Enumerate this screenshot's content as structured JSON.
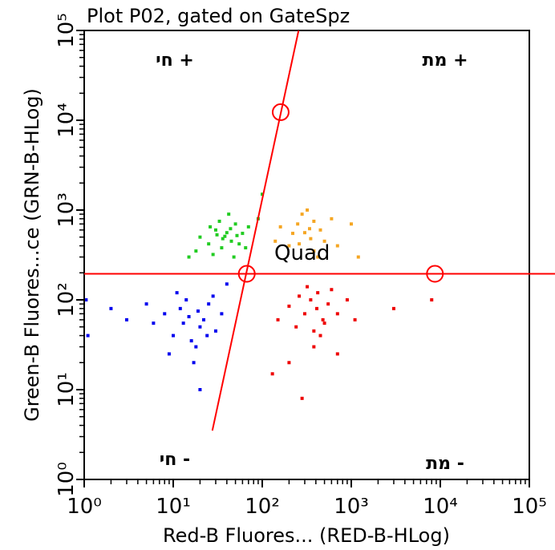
{
  "chart_data": {
    "type": "scatter",
    "title": "Plot P02, gated on GateSpz",
    "x_label": "Red-B Fluores... (RED-B-HLog)",
    "y_label": "Green-B Fluores...ce (GRN-B-HLog)",
    "log_x": true,
    "log_y": true,
    "xlim": [
      1,
      100000
    ],
    "ylim": [
      1,
      100000
    ],
    "xticks": [
      {
        "value": 1,
        "label": "10⁰"
      },
      {
        "value": 10,
        "label": "10¹"
      },
      {
        "value": 100,
        "label": "10²"
      },
      {
        "value": 1000,
        "label": "10³"
      },
      {
        "value": 10000,
        "label": "10⁴"
      },
      {
        "value": 100000,
        "label": "10⁵"
      }
    ],
    "yticks": [
      {
        "value": 1,
        "label": "10⁰"
      },
      {
        "value": 10,
        "label": "10¹"
      },
      {
        "value": 100,
        "label": "10²"
      },
      {
        "value": 1000,
        "label": "10³"
      },
      {
        "value": 10000,
        "label": "10⁴"
      },
      {
        "value": 100000,
        "label": "10⁵"
      }
    ],
    "quadrant_labels": [
      "חי +",
      "מת +",
      "חי -",
      "מת -"
    ],
    "gate": {
      "label": "Quad",
      "color": "#ff0000",
      "horizontal_y": 195,
      "slant_x": [
        27.5,
        256
      ],
      "slant_y": [
        3.5,
        100000
      ],
      "handles_x": [
        161,
        67,
        8700
      ],
      "handles_y": [
        12300,
        195,
        195
      ]
    },
    "series": [
      {
        "color": "#22cc22",
        "x": [
          38,
          30,
          45,
          25,
          50,
          35,
          60,
          20,
          42,
          28,
          55,
          33,
          70,
          18,
          48,
          40,
          36,
          44,
          31,
          52,
          15,
          90,
          100,
          26,
          65
        ],
        "y": [
          510,
          600,
          450,
          420,
          700,
          380,
          550,
          500,
          900,
          320,
          420,
          750,
          650,
          350,
          300,
          560,
          480,
          620,
          530,
          520,
          300,
          800,
          1500,
          650,
          380
        ]
      },
      {
        "color": "#f5a623",
        "x": [
          300,
          250,
          350,
          200,
          450,
          280,
          380,
          220,
          500,
          320,
          160,
          600,
          420,
          260,
          340,
          1000,
          140,
          700,
          1200,
          380
        ],
        "y": [
          560,
          700,
          480,
          400,
          600,
          900,
          350,
          550,
          450,
          1000,
          650,
          800,
          300,
          420,
          620,
          700,
          450,
          400,
          300,
          750
        ]
      },
      {
        "color": "#0000ee",
        "x": [
          15,
          12,
          20,
          10,
          25,
          18,
          8,
          14,
          22,
          30,
          6,
          16,
          11,
          28,
          19,
          13,
          24,
          5,
          35,
          9,
          17,
          40,
          3,
          20,
          1.05,
          1.1,
          2
        ],
        "y": [
          65,
          80,
          50,
          40,
          90,
          30,
          70,
          100,
          60,
          45,
          55,
          35,
          120,
          110,
          75,
          55,
          40,
          90,
          70,
          25,
          20,
          150,
          60,
          10,
          100,
          40,
          80
        ]
      },
      {
        "color": "#ee0000",
        "x": [
          410,
          350,
          480,
          300,
          550,
          380,
          260,
          600,
          450,
          200,
          700,
          320,
          500,
          240,
          420,
          150,
          900,
          380,
          1100,
          200,
          130,
          700,
          3000,
          8000,
          280
        ],
        "y": [
          80,
          100,
          60,
          70,
          90,
          45,
          110,
          130,
          40,
          85,
          70,
          140,
          55,
          50,
          120,
          60,
          100,
          30,
          60,
          20,
          15,
          25,
          80,
          100,
          8
        ]
      }
    ]
  }
}
